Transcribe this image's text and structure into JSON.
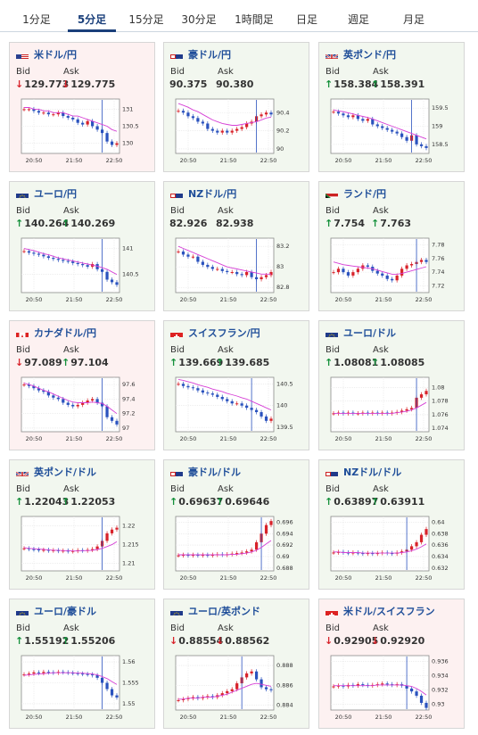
{
  "tabs": [
    {
      "label": "1分足",
      "active": false
    },
    {
      "label": "5分足",
      "active": true
    },
    {
      "label": "15分足",
      "active": false
    },
    {
      "label": "30分足",
      "active": false
    },
    {
      "label": "1時間足",
      "active": false
    },
    {
      "label": "日足",
      "active": false
    },
    {
      "label": "週足",
      "active": false
    },
    {
      "label": "月足",
      "active": false
    }
  ],
  "labels": {
    "bid": "Bid",
    "ask": "Ask"
  },
  "colors": {
    "up_card_bg": "#f2f7ef",
    "down_card_bg": "#fdf1f1",
    "up_arrow": "#14903a",
    "down_arrow": "#d8222a",
    "candle_up": "#d8222a",
    "candle_down": "#2a52be",
    "ma_line": "#d63fd6",
    "pair_text": "#1f4e99"
  },
  "cards": [
    {
      "pair": "米ドル/円",
      "flag": "us",
      "trend": "down",
      "bid_dir": "down",
      "bid": "129.773",
      "ask_dir": "down",
      "ask": "129.775",
      "chart": {
        "x_ticks": [
          "20:50",
          "21:50",
          "22:50"
        ],
        "y_ticks": [
          "131",
          "130.5",
          "130"
        ],
        "y_range": [
          129.7,
          131.3
        ],
        "shape": [
          131.0,
          131.0,
          130.95,
          130.9,
          130.9,
          130.85,
          130.85,
          130.9,
          130.8,
          130.75,
          130.7,
          130.6,
          130.55,
          130.65,
          130.5,
          130.4,
          130.3,
          130.05,
          129.95,
          130.0
        ],
        "ma": [
          131.05,
          131.05,
          131.0,
          131.0,
          130.95,
          130.95,
          130.9,
          130.9,
          130.9,
          130.85,
          130.8,
          130.8,
          130.75,
          130.7,
          130.65,
          130.6,
          130.55,
          130.5,
          130.4,
          130.35
        ],
        "spike": 16
      }
    },
    {
      "pair": "豪ドル/円",
      "flag": "au",
      "trend": "up",
      "bid_dir": null,
      "bid": "90.375",
      "ask_dir": null,
      "ask": "90.380",
      "chart": {
        "x_ticks": [
          "20:50",
          "21:50",
          "22:50"
        ],
        "y_ticks": [
          "90.4",
          "90.2",
          "90"
        ],
        "y_range": [
          89.95,
          90.55
        ],
        "shape": [
          90.42,
          90.4,
          90.36,
          90.34,
          90.3,
          90.28,
          90.22,
          90.2,
          90.18,
          90.2,
          90.18,
          90.2,
          90.22,
          90.24,
          90.28,
          90.3,
          90.36,
          90.38,
          90.4,
          90.38
        ],
        "ma": [
          90.5,
          90.48,
          90.46,
          90.43,
          90.41,
          90.38,
          90.35,
          90.32,
          90.3,
          90.28,
          90.27,
          90.26,
          90.26,
          90.27,
          90.28,
          90.29,
          90.3,
          90.32,
          90.34,
          90.35
        ],
        "spike": 16
      }
    },
    {
      "pair": "英ポンド/円",
      "flag": "uk",
      "trend": "up",
      "bid_dir": "up",
      "bid": "158.384",
      "ask_dir": "up",
      "ask": "158.391",
      "chart": {
        "x_ticks": [
          "20:50",
          "21:50",
          "22:50"
        ],
        "y_ticks": [
          "159.5",
          "159",
          "158.5"
        ],
        "y_range": [
          158.25,
          159.75
        ],
        "shape": [
          159.4,
          159.35,
          159.3,
          159.25,
          159.3,
          159.2,
          159.15,
          159.2,
          159.05,
          159.0,
          158.95,
          158.9,
          158.85,
          158.8,
          158.7,
          158.6,
          158.75,
          158.5,
          158.45,
          158.4
        ],
        "ma": [
          159.45,
          159.42,
          159.4,
          159.37,
          159.34,
          159.3,
          159.27,
          159.24,
          159.2,
          159.15,
          159.1,
          159.05,
          159.0,
          158.95,
          158.9,
          158.85,
          158.8,
          158.75,
          158.7,
          158.65
        ],
        "spike": 16
      }
    },
    {
      "pair": "ユーロ/円",
      "flag": "eu",
      "trend": "up",
      "bid_dir": "up",
      "bid": "140.264",
      "ask_dir": "up",
      "ask": "140.269",
      "chart": {
        "x_ticks": [
          "20:50",
          "21:50",
          "22:50"
        ],
        "y_ticks": [
          "141",
          "140.5"
        ],
        "y_range": [
          140.15,
          141.2
        ],
        "shape": [
          140.95,
          140.92,
          140.9,
          140.88,
          140.85,
          140.82,
          140.8,
          140.78,
          140.76,
          140.75,
          140.72,
          140.7,
          140.68,
          140.65,
          140.7,
          140.6,
          140.55,
          140.4,
          140.35,
          140.3
        ],
        "ma": [
          141.0,
          140.98,
          140.96,
          140.93,
          140.9,
          140.88,
          140.85,
          140.82,
          140.8,
          140.78,
          140.76,
          140.74,
          140.72,
          140.7,
          140.68,
          140.66,
          140.63,
          140.6,
          140.55,
          140.5
        ],
        "spike": 16
      }
    },
    {
      "pair": "NZドル/円",
      "flag": "nz",
      "trend": "up",
      "bid_dir": null,
      "bid": "82.926",
      "ask_dir": null,
      "ask": "82.938",
      "chart": {
        "x_ticks": [
          "20:50",
          "21:50",
          "22:50"
        ],
        "y_ticks": [
          "83.2",
          "83",
          "82.8"
        ],
        "y_range": [
          82.75,
          83.28
        ],
        "shape": [
          83.15,
          83.12,
          83.1,
          83.1,
          83.05,
          83.02,
          83.0,
          82.98,
          82.98,
          82.96,
          82.95,
          82.95,
          82.93,
          82.92,
          82.95,
          82.9,
          82.88,
          82.9,
          82.92,
          82.95
        ],
        "ma": [
          83.2,
          83.18,
          83.16,
          83.14,
          83.12,
          83.1,
          83.08,
          83.06,
          83.04,
          83.02,
          83.0,
          82.99,
          82.98,
          82.97,
          82.96,
          82.95,
          82.94,
          82.93,
          82.93,
          82.93
        ],
        "spike": 16
      }
    },
    {
      "pair": "ランド/円",
      "flag": "za",
      "trend": "up",
      "bid_dir": "up",
      "bid": "7.754",
      "ask_dir": "up",
      "ask": "7.763",
      "chart": {
        "x_ticks": [
          "20:50",
          "21:50",
          "22:50"
        ],
        "y_ticks": [
          "7.78",
          "7.76",
          "7.74",
          "7.72"
        ],
        "y_range": [
          7.71,
          7.79
        ],
        "shape": [
          7.74,
          7.745,
          7.74,
          7.735,
          7.74,
          7.745,
          7.75,
          7.748,
          7.742,
          7.738,
          7.735,
          7.73,
          7.728,
          7.735,
          7.745,
          7.75,
          7.752,
          7.755,
          7.758,
          7.755
        ],
        "ma": [
          7.755,
          7.753,
          7.751,
          7.75,
          7.749,
          7.748,
          7.747,
          7.746,
          7.745,
          7.743,
          7.741,
          7.739,
          7.737,
          7.737,
          7.738,
          7.74,
          7.742,
          7.744,
          7.746,
          7.748
        ],
        "spike": 17
      }
    },
    {
      "pair": "カナダドル/円",
      "flag": "ca",
      "trend": "down",
      "bid_dir": "down",
      "bid": "97.089",
      "ask_dir": "up",
      "ask": "97.104",
      "chart": {
        "x_ticks": [
          "20:50",
          "21:50",
          "22:50"
        ],
        "y_ticks": [
          "97.6",
          "97.4",
          "97.2",
          "97"
        ],
        "y_range": [
          96.95,
          97.7
        ],
        "shape": [
          97.6,
          97.58,
          97.55,
          97.52,
          97.5,
          97.45,
          97.42,
          97.4,
          97.35,
          97.32,
          97.3,
          97.32,
          97.35,
          97.38,
          97.4,
          97.35,
          97.3,
          97.15,
          97.1,
          97.05
        ],
        "ma": [
          97.62,
          97.6,
          97.58,
          97.55,
          97.52,
          97.5,
          97.47,
          97.44,
          97.41,
          97.38,
          97.36,
          97.35,
          97.35,
          97.35,
          97.36,
          97.35,
          97.34,
          97.3,
          97.25,
          97.2
        ],
        "spike": 16
      }
    },
    {
      "pair": "スイスフラン/円",
      "flag": "ch",
      "trend": "up",
      "bid_dir": "up",
      "bid": "139.669",
      "ask_dir": "up",
      "ask": "139.685",
      "chart": {
        "x_ticks": [
          "20:50",
          "21:50",
          "22:50"
        ],
        "y_ticks": [
          "140.5",
          "140",
          "139.5"
        ],
        "y_range": [
          139.4,
          140.65
        ],
        "shape": [
          140.5,
          140.45,
          140.42,
          140.4,
          140.35,
          140.3,
          140.28,
          140.25,
          140.2,
          140.15,
          140.1,
          140.05,
          140.05,
          140.0,
          139.95,
          139.9,
          139.85,
          139.75,
          139.65,
          139.7
        ],
        "ma": [
          140.6,
          140.58,
          140.55,
          140.52,
          140.48,
          140.45,
          140.42,
          140.38,
          140.35,
          140.32,
          140.28,
          140.25,
          140.22,
          140.18,
          140.15,
          140.1,
          140.05,
          140.0,
          139.95,
          139.9
        ],
        "spike": 15
      }
    },
    {
      "pair": "ユーロ/ドル",
      "flag": "eu",
      "trend": "up",
      "bid_dir": "up",
      "bid": "1.08081",
      "ask_dir": "up",
      "ask": "1.08085",
      "chart": {
        "x_ticks": [
          "20:50",
          "21:50",
          "22:50"
        ],
        "y_ticks": [
          "1.08",
          "1.078",
          "1.076",
          "1.074"
        ],
        "y_range": [
          1.0735,
          1.0815
        ],
        "shape": [
          1.0762,
          1.0763,
          1.0762,
          1.0763,
          1.0762,
          1.0762,
          1.0763,
          1.0762,
          1.0763,
          1.0762,
          1.0763,
          1.0762,
          1.0763,
          1.0764,
          1.0766,
          1.0768,
          1.077,
          1.0785,
          1.079,
          1.0795
        ],
        "ma": [
          1.0762,
          1.0762,
          1.0762,
          1.0762,
          1.0762,
          1.0762,
          1.0762,
          1.0762,
          1.0762,
          1.0762,
          1.0762,
          1.0762,
          1.0762,
          1.0763,
          1.0764,
          1.0765,
          1.0767,
          1.077,
          1.0774,
          1.0778
        ],
        "spike": 17
      }
    },
    {
      "pair": "英ポンド/ドル",
      "flag": "uk",
      "trend": "up",
      "bid_dir": "up",
      "bid": "1.22043",
      "ask_dir": "up",
      "ask": "1.22053",
      "chart": {
        "x_ticks": [
          "20:50",
          "21:50",
          "22:50"
        ],
        "y_ticks": [
          "1.22",
          "1.215",
          "1.21"
        ],
        "y_range": [
          1.208,
          1.2225
        ],
        "shape": [
          1.214,
          1.2138,
          1.2137,
          1.2135,
          1.2136,
          1.2134,
          1.2135,
          1.2133,
          1.2134,
          1.2132,
          1.2133,
          1.2135,
          1.2134,
          1.2136,
          1.2138,
          1.2145,
          1.216,
          1.218,
          1.219,
          1.2195
        ],
        "ma": [
          1.2142,
          1.214,
          1.2139,
          1.2138,
          1.2137,
          1.2136,
          1.2135,
          1.2135,
          1.2134,
          1.2134,
          1.2133,
          1.2133,
          1.2134,
          1.2134,
          1.2135,
          1.2137,
          1.214,
          1.2145,
          1.215,
          1.2158
        ],
        "spike": 16
      }
    },
    {
      "pair": "豪ドル/ドル",
      "flag": "au",
      "trend": "up",
      "bid_dir": "up",
      "bid": "0.69637",
      "ask_dir": "up",
      "ask": "0.69646",
      "chart": {
        "x_ticks": [
          "20:50",
          "21:50",
          "22:50"
        ],
        "y_ticks": [
          "0.696",
          "0.694",
          "0.692",
          "0.69",
          "0.688"
        ],
        "y_range": [
          0.6875,
          0.697
        ],
        "shape": [
          0.6902,
          0.6903,
          0.6902,
          0.6903,
          0.6902,
          0.6903,
          0.6902,
          0.6903,
          0.6904,
          0.6903,
          0.6904,
          0.6905,
          0.6906,
          0.6907,
          0.6909,
          0.6912,
          0.6925,
          0.694,
          0.6955,
          0.6962
        ],
        "ma": [
          0.6903,
          0.6903,
          0.6903,
          0.6903,
          0.6903,
          0.6903,
          0.6903,
          0.6903,
          0.6903,
          0.6903,
          0.6903,
          0.6904,
          0.6904,
          0.6905,
          0.6906,
          0.6908,
          0.6911,
          0.6916,
          0.6922,
          0.6928
        ],
        "spike": 17
      }
    },
    {
      "pair": "NZドル/ドル",
      "flag": "nz",
      "trend": "up",
      "bid_dir": "up",
      "bid": "0.63897",
      "ask_dir": "up",
      "ask": "0.63911",
      "chart": {
        "x_ticks": [
          "20:50",
          "21:50",
          "22:50"
        ],
        "y_ticks": [
          "0.64",
          "0.638",
          "0.636",
          "0.634",
          "0.632"
        ],
        "y_range": [
          0.6315,
          0.641
        ],
        "shape": [
          0.6347,
          0.6348,
          0.6347,
          0.6346,
          0.6347,
          0.6346,
          0.6345,
          0.6346,
          0.6345,
          0.6346,
          0.6347,
          0.6346,
          0.6345,
          0.6347,
          0.6349,
          0.6352,
          0.6358,
          0.6365,
          0.6378,
          0.6388
        ],
        "ma": [
          0.6348,
          0.6348,
          0.6347,
          0.6347,
          0.6347,
          0.6347,
          0.6346,
          0.6346,
          0.6346,
          0.6346,
          0.6346,
          0.6346,
          0.6346,
          0.6346,
          0.6347,
          0.6348,
          0.635,
          0.6353,
          0.6357,
          0.6362
        ],
        "spike": 15
      }
    },
    {
      "pair": "ユーロ/豪ドル",
      "flag": "eu",
      "trend": "up",
      "bid_dir": "up",
      "bid": "1.55192",
      "ask_dir": "up",
      "ask": "1.55206",
      "chart": {
        "x_ticks": [
          "20:50",
          "21:50",
          "22:50"
        ],
        "y_ticks": [
          "1.56",
          "1.555",
          "1.55"
        ],
        "y_range": [
          1.5485,
          1.5615
        ],
        "shape": [
          1.557,
          1.5572,
          1.5575,
          1.5573,
          1.5576,
          1.5575,
          1.5574,
          1.5576,
          1.5575,
          1.5574,
          1.5573,
          1.5572,
          1.5571,
          1.557,
          1.5568,
          1.5562,
          1.555,
          1.5535,
          1.552,
          1.5515
        ],
        "ma": [
          1.5568,
          1.5569,
          1.557,
          1.5571,
          1.5572,
          1.5573,
          1.5574,
          1.5574,
          1.5574,
          1.5574,
          1.5574,
          1.5573,
          1.5573,
          1.5572,
          1.5571,
          1.5569,
          1.5565,
          1.556,
          1.5553,
          1.5546
        ],
        "spike": 16
      }
    },
    {
      "pair": "ユーロ/英ポンド",
      "flag": "eu",
      "trend": "up",
      "bid_dir": "down",
      "bid": "0.88554",
      "ask_dir": "down",
      "ask": "0.88562",
      "chart": {
        "x_ticks": [
          "20:50",
          "21:50",
          "22:50"
        ],
        "y_ticks": [
          "0.888",
          "0.886",
          "0.884"
        ],
        "y_range": [
          0.8835,
          0.889
        ],
        "shape": [
          0.8845,
          0.8846,
          0.8847,
          0.8848,
          0.8847,
          0.8848,
          0.8849,
          0.8848,
          0.885,
          0.8852,
          0.8854,
          0.8856,
          0.8862,
          0.8868,
          0.8872,
          0.8874,
          0.8866,
          0.8858,
          0.8856,
          0.8855
        ],
        "ma": [
          0.8846,
          0.8846,
          0.8847,
          0.8847,
          0.8847,
          0.8848,
          0.8848,
          0.8848,
          0.8849,
          0.885,
          0.8851,
          0.8853,
          0.8855,
          0.8857,
          0.8859,
          0.8861,
          0.8862,
          0.8861,
          0.886,
          0.8859
        ],
        "spike": 13
      }
    },
    {
      "pair": "米ドル/スイスフラン",
      "flag": "ch",
      "trend": "down",
      "bid_dir": "down",
      "bid": "0.92905",
      "ask_dir": "down",
      "ask": "0.92920",
      "chart": {
        "x_ticks": [
          "20:50",
          "21:50",
          "22:50"
        ],
        "y_ticks": [
          "0.936",
          "0.934",
          "0.932",
          "0.93"
        ],
        "y_range": [
          0.9292,
          0.9368
        ],
        "shape": [
          0.9325,
          0.9326,
          0.9325,
          0.9327,
          0.9326,
          0.9328,
          0.9327,
          0.9326,
          0.9327,
          0.9328,
          0.9329,
          0.9328,
          0.9327,
          0.9328,
          0.9326,
          0.9322,
          0.9318,
          0.9312,
          0.9302,
          0.9295
        ],
        "ma": [
          0.9326,
          0.9326,
          0.9326,
          0.9326,
          0.9326,
          0.9326,
          0.9326,
          0.9326,
          0.9326,
          0.9327,
          0.9327,
          0.9327,
          0.9327,
          0.9327,
          0.9327,
          0.9326,
          0.9325,
          0.9322,
          0.9318,
          0.9313
        ],
        "spike": 15
      }
    }
  ]
}
